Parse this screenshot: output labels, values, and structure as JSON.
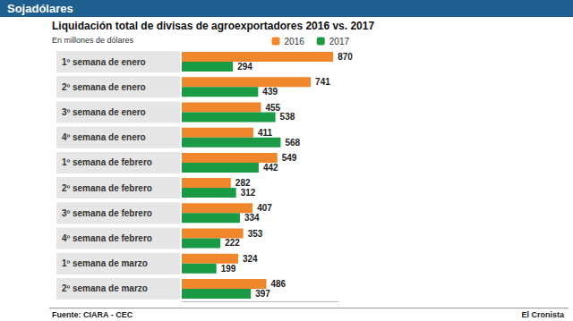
{
  "chart_data": {
    "type": "bar",
    "title": "Sojadólares",
    "subtitle": "Liquidación total de divisas de agroexportadores 2016 vs. 2017",
    "xlabel": "En millones de dólares",
    "annotations": [
      "Fuente: CIARA - CEC",
      "El Cronista"
    ],
    "categories": [
      "1º semana de enero",
      "2º semana de enero",
      "3º semana de enero",
      "4º semana de enero",
      "1º semana de febrero",
      "2º semana de febrero",
      "3º semana de febrero",
      "4º semana de febrero",
      "1º semana de marzo",
      "2º semana de marzo"
    ],
    "series": [
      {
        "name": "2016",
        "color": "#f0872d",
        "values": [
          870,
          741,
          455,
          411,
          549,
          282,
          407,
          353,
          324,
          486
        ]
      },
      {
        "name": "2017",
        "color": "#1a9a45",
        "values": [
          294,
          439,
          538,
          568,
          442,
          312,
          334,
          222,
          199,
          397
        ]
      }
    ],
    "xlim": [
      0,
      900
    ],
    "orientation": "horizontal",
    "data_labels": true,
    "tick_labels": "y",
    "grid": false,
    "legend": "top-right"
  }
}
